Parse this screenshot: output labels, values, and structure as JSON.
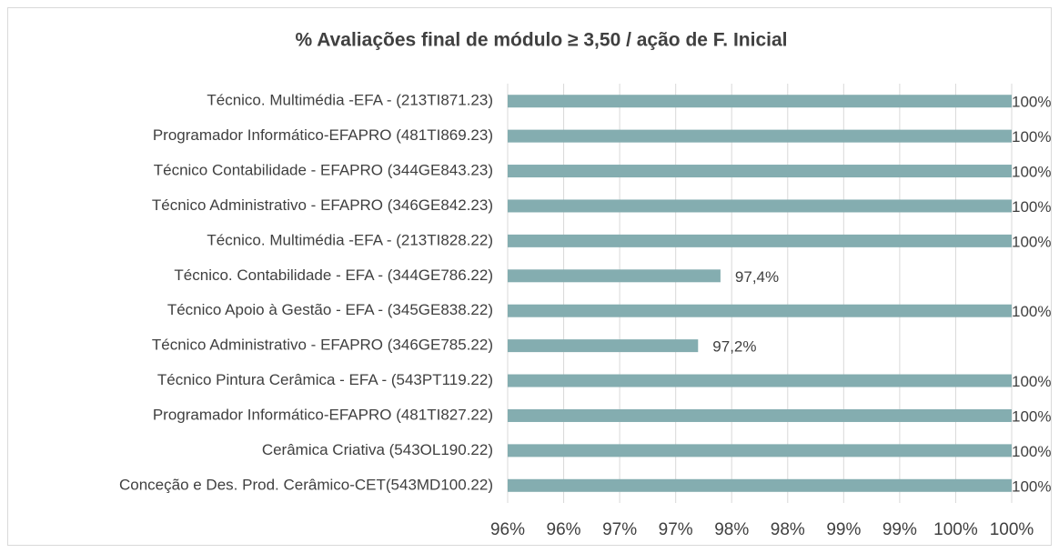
{
  "chart_data": {
    "type": "bar",
    "orientation": "horizontal",
    "title": "% Avaliações final de módulo ≥ 3,50 / ação de F. Inicial",
    "categories": [
      "Técnico. Multimédia -EFA - (213TI871.23)",
      "Programador Informático-EFAPRO (481TI869.23)",
      "Técnico Contabilidade - EFAPRO (344GE843.23)",
      "Técnico Administrativo - EFAPRO (346GE842.23)",
      "Técnico. Multimédia -EFA - (213TI828.22)",
      "Técnico. Contabilidade - EFA - (344GE786.22)",
      "Técnico Apoio à Gestão - EFA - (345GE838.22)",
      "Técnico Administrativo - EFAPRO (346GE785.22)",
      "Técnico Pintura Cerâmica - EFA - (543PT119.22)",
      "Programador Informático-EFAPRO (481TI827.22)",
      "Cerâmica Criativa (543OL190.22)",
      "Conceção e Des. Prod. Cerâmico-CET(543MD100.22)"
    ],
    "values": [
      100,
      100,
      100,
      100,
      100,
      97.4,
      100,
      97.2,
      100,
      100,
      100,
      100
    ],
    "value_labels": [
      "100%",
      "100%",
      "100%",
      "100%",
      "100%",
      "97,4%",
      "100%",
      "97,2%",
      "100%",
      "100%",
      "100%",
      "100%"
    ],
    "color": "#84adb0",
    "xlim": [
      95.5,
      100
    ],
    "xticks": [
      {
        "value": 95.5,
        "label": "96%"
      },
      {
        "value": 96,
        "label": "96%"
      },
      {
        "value": 96.5,
        "label": "97%"
      },
      {
        "value": 97,
        "label": "97%"
      },
      {
        "value": 97.5,
        "label": "98%"
      },
      {
        "value": 98,
        "label": "98%"
      },
      {
        "value": 98.5,
        "label": "99%"
      },
      {
        "value": 99,
        "label": "99%"
      },
      {
        "value": 99.5,
        "label": "100%"
      },
      {
        "value": 100,
        "label": "100%"
      }
    ],
    "grid": true
  }
}
